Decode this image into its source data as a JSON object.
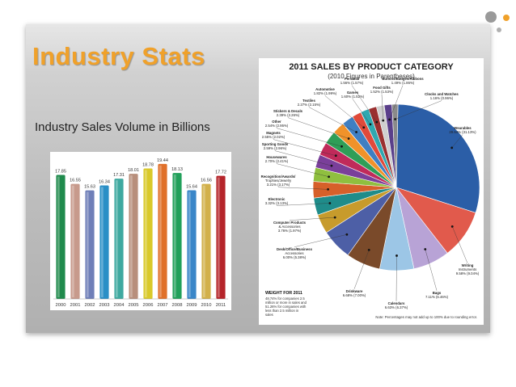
{
  "slide": {
    "title": "Industry Stats",
    "subtitle": "Industry Sales Volume in Billions"
  },
  "colors": {
    "title": "#f0a12a",
    "dot_gray": "#9a9a9a",
    "dot_orange": "#f0a12a"
  },
  "chart_data": [
    {
      "type": "bar",
      "categories": [
        "2000",
        "2001",
        "2002",
        "2003",
        "2004",
        "2005",
        "2006",
        "2007",
        "2008",
        "2009",
        "2010",
        "2011"
      ],
      "values": [
        17.85,
        16.55,
        15.63,
        16.34,
        17.31,
        18.01,
        18.78,
        19.44,
        18.13,
        15.64,
        16.56,
        17.72
      ],
      "value_labels": [
        "17.85",
        "16.55",
        "15.63",
        "16.34",
        "17.31",
        "18.01",
        "18.78",
        "19.44",
        "18.13",
        "15.64",
        "16.56",
        "17.72"
      ],
      "colors": [
        "#1f8a4c",
        "#c79a8c",
        "#6f7fb8",
        "#2a8fc6",
        "#3fa9a0",
        "#b88f7c",
        "#d9c92a",
        "#e0702a",
        "#21a05a",
        "#3a86c8",
        "#d2b04a",
        "#b5242a"
      ],
      "ylim": [
        0,
        20
      ],
      "title": "",
      "xlabel": "",
      "ylabel": ""
    },
    {
      "type": "pie",
      "title": "2011 SALES BY PRODUCT CATEGORY",
      "subtitle": "(2010 Figures in Parentheses)",
      "slices": [
        {
          "name": "Wearables",
          "value": 29.64,
          "label": "Wearables\n29.64% (31.13%)",
          "color": "#2b5ea7"
        },
        {
          "name": "Writing Instruments",
          "value": 9.58,
          "label": "Writing\nInstruments\n9.58% (9.04%)",
          "color": "#e15a4c"
        },
        {
          "name": "Bags",
          "value": 7.11,
          "label": "Bags\n7.11% (6.46%)",
          "color": "#b8a3d6"
        },
        {
          "name": "Calendars",
          "value": 6.63,
          "label": "Calendars\n6.63% (6.37%)",
          "color": "#9cc6e6"
        },
        {
          "name": "Drinkware",
          "value": 6.68,
          "label": "Drinkware\n6.68% (7.00%)",
          "color": "#7a4a2a"
        },
        {
          "name": "Desk/Office/Business Accessories",
          "value": 6.0,
          "label": "Desk/Office/Business\nAccessories\n6.00% (5.38%)",
          "color": "#4d5fa6"
        },
        {
          "name": "Computer Products & Accessories",
          "value": 3.76,
          "label": "Computer Products\n& Accessories\n3.76% (1.97%)",
          "color": "#c79b2c"
        },
        {
          "name": "Electronic",
          "value": 3.32,
          "label": "Electronic\n3.32% (3.13%)",
          "color": "#1f8c8a"
        },
        {
          "name": "Recognition/Awards/Trophies/Jewelry",
          "value": 3.21,
          "label": "Recognition/Awards/\nTrophies/Jewelry\n3.21% (3.17%)",
          "color": "#d6602a"
        },
        {
          "name": "Housewares",
          "value": 2.7,
          "label": "Housewares\n2.70% (2.41%)",
          "color": "#8fbf3f"
        },
        {
          "name": "Sporting Goods",
          "value": 2.59,
          "label": "Sporting Goods\n2.59% (2.96%)",
          "color": "#7a3f9a"
        },
        {
          "name": "Magnets",
          "value": 2.55,
          "label": "Magnets\n2.55% (2.02%)",
          "color": "#c02a5a"
        },
        {
          "name": "Other",
          "value": 2.54,
          "label": "Other\n2.54% (2.95%)",
          "color": "#2f9e57"
        },
        {
          "name": "Stickers & Decals",
          "value": 2.39,
          "label": "Stickers & Decals\n2.39% (2.26%)",
          "color": "#f0922a"
        },
        {
          "name": "Textiles",
          "value": 2.27,
          "label": "Textiles\n2.27% (2.15%)",
          "color": "#3f7fc2"
        },
        {
          "name": "Automotive",
          "value": 1.82,
          "label": "Automotive\n1.82% (1.99%)",
          "color": "#e04a3a"
        },
        {
          "name": "Games",
          "value": 1.6,
          "label": "Games\n1.60% (1.52%)",
          "color": "#2fa8b0"
        },
        {
          "name": "Personal",
          "value": 1.56,
          "label": "Personal\n1.56% (1.57%)",
          "color": "#9a3030"
        },
        {
          "name": "Food Gifts",
          "value": 1.52,
          "label": "Food Gifts\n1.52% (1.53%)",
          "color": "#cfcfcf"
        },
        {
          "name": "Buttons/Badges/Ribbons",
          "value": 1.49,
          "label": "Buttons/Badges/Ribbons\n1.49% (1.86%)",
          "color": "#5a3f8a"
        },
        {
          "name": "Clocks and Watches",
          "value": 1.16,
          "label": "Clocks and Watches\n1.16% (0.96%)",
          "color": "#8a8a8a"
        }
      ],
      "notes": {
        "weight_title": "WEIGHT FOR 2011",
        "weight_text": "48.74% for companies 2.5 million or more in sales and 51.26% for companies with less than 2.5 million in sales",
        "footnote": "Note: Percentages may not add up to 100% due to rounding error."
      }
    }
  ]
}
